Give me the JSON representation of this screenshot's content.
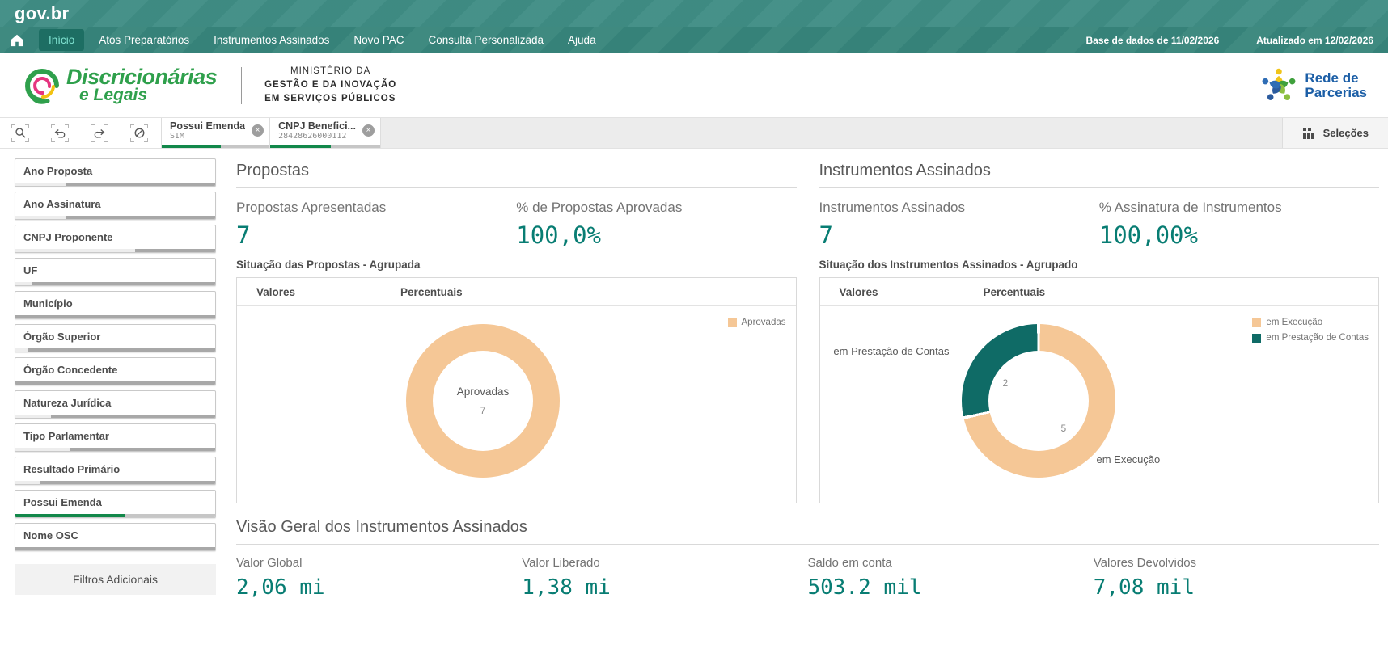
{
  "colors": {
    "value_teal": "#087D73",
    "donut_peach": "#F5C796",
    "donut_teal": "#0F6B66",
    "selected_green": "#12884A",
    "topbar_teal": "#3F8D84",
    "navbar_teal": "#37857B"
  },
  "topbar": {
    "logo": "gov.br",
    "nav_items": [
      {
        "label": "Início",
        "active": true
      },
      {
        "label": "Atos Preparatórios",
        "active": false
      },
      {
        "label": "Instrumentos Assinados",
        "active": false
      },
      {
        "label": "Novo PAC",
        "active": false
      },
      {
        "label": "Consulta Personalizada",
        "active": false
      },
      {
        "label": "Ajuda",
        "active": false
      }
    ],
    "database_info": "Base de dados de 11/02/2026",
    "updated_info": "Atualizado em 12/02/2026"
  },
  "header": {
    "app_name_line1": "Discricionárias",
    "app_name_line2": "e Legais",
    "ministry_lines": [
      "MINISTÉRIO DA",
      "GESTÃO E DA INOVAÇÃO",
      "EM SERVIÇOS PÚBLICOS"
    ],
    "partner_name_line1": "Rede de",
    "partner_name_line2": "Parcerias"
  },
  "selection_bar": {
    "chips": [
      {
        "title": "Possui Emenda",
        "value": "SIM",
        "selected_pct": 55
      },
      {
        "title": "CNPJ Benefici...",
        "value": "28428626000112",
        "selected_pct": 55
      }
    ],
    "selections_label": "Seleções"
  },
  "sidebar": {
    "filters": [
      {
        "label": "Ano Proposta",
        "bar": [
          {
            "state": "alt",
            "pct": 25
          },
          {
            "state": "exc",
            "pct": 75
          }
        ]
      },
      {
        "label": "Ano Assinatura",
        "bar": [
          {
            "state": "alt",
            "pct": 25
          },
          {
            "state": "exc",
            "pct": 75
          }
        ]
      },
      {
        "label": "CNPJ Proponente",
        "bar": [
          {
            "state": "alt",
            "pct": 60
          },
          {
            "state": "exc",
            "pct": 40
          }
        ]
      },
      {
        "label": "UF",
        "bar": [
          {
            "state": "alt",
            "pct": 8
          },
          {
            "state": "exc",
            "pct": 92
          }
        ]
      },
      {
        "label": "Município",
        "bar": [
          {
            "state": "exc",
            "pct": 100
          }
        ]
      },
      {
        "label": "Órgão Superior",
        "bar": [
          {
            "state": "alt",
            "pct": 6
          },
          {
            "state": "exc",
            "pct": 94
          }
        ]
      },
      {
        "label": "Órgão Concedente",
        "bar": [
          {
            "state": "exc",
            "pct": 100
          }
        ]
      },
      {
        "label": "Natureza Jurídica",
        "bar": [
          {
            "state": "alt",
            "pct": 18
          },
          {
            "state": "exc",
            "pct": 82
          }
        ]
      },
      {
        "label": "Tipo Parlamentar",
        "bar": [
          {
            "state": "alt",
            "pct": 27
          },
          {
            "state": "exc",
            "pct": 73
          }
        ]
      },
      {
        "label": "Resultado Primário",
        "bar": [
          {
            "state": "alt",
            "pct": 12
          },
          {
            "state": "exc",
            "pct": 88
          }
        ]
      },
      {
        "label": "Possui Emenda",
        "bar": [
          {
            "state": "sel",
            "pct": 55
          },
          {
            "state": "excl",
            "pct": 45
          }
        ]
      },
      {
        "label": "Nome OSC",
        "bar": [
          {
            "state": "exc",
            "pct": 100
          }
        ]
      }
    ],
    "additional_filters_label": "Filtros Adicionais"
  },
  "propostas": {
    "section_title": "Propostas",
    "kpis": [
      {
        "label": "Propostas Apresentadas",
        "value": "7"
      },
      {
        "label": "% de Propostas Aprovadas",
        "value": "100,0%"
      }
    ],
    "chart_caption": "Situação das Propostas - Agrupada",
    "view_tabs": [
      "Valores",
      "Percentuais"
    ]
  },
  "instrumentos": {
    "section_title": "Instrumentos Assinados",
    "kpis": [
      {
        "label": "Instrumentos Assinados",
        "value": "7"
      },
      {
        "label": "% Assinatura de Instrumentos",
        "value": "100,00%"
      }
    ],
    "chart_caption": "Situação dos Instrumentos Assinados - Agrupado",
    "view_tabs": [
      "Valores",
      "Percentuais"
    ]
  },
  "visao_geral": {
    "section_title": "Visão Geral dos Instrumentos Assinados",
    "kpis": [
      {
        "label": "Valor Global",
        "value": "2,06 mi"
      },
      {
        "label": "Valor Liberado",
        "value": "1,38 mi"
      },
      {
        "label": "Saldo em conta",
        "value": "503.2 mil"
      },
      {
        "label": "Valores Devolvidos",
        "value": "7,08 mil"
      }
    ]
  },
  "chart_data": [
    {
      "type": "pie",
      "title": "Situação das Propostas - Agrupada",
      "series": [
        {
          "name": "Aprovadas",
          "value": 7,
          "color": "#F5C796"
        }
      ],
      "total": 7,
      "center_label": "Aprovadas",
      "center_value": "7",
      "legend_position": "right-top"
    },
    {
      "type": "pie",
      "title": "Situação dos Instrumentos Assinados - Agrupado",
      "series": [
        {
          "name": "em Execução",
          "value": 5,
          "color": "#F5C796"
        },
        {
          "name": "em Prestação de Contas",
          "value": 2,
          "color": "#0F6B66"
        }
      ],
      "total": 7,
      "legend_position": "right-top"
    }
  ]
}
